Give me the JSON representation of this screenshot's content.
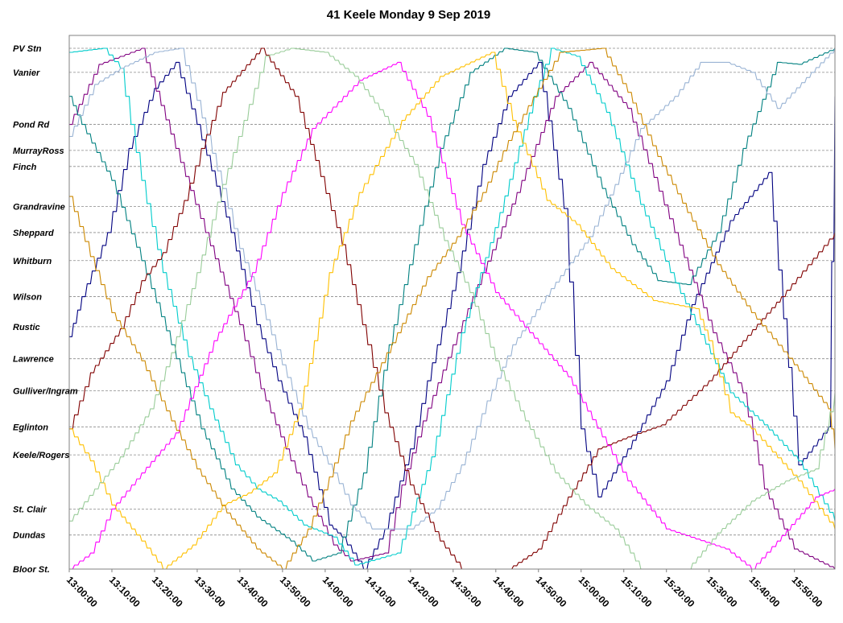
{
  "chart_data": {
    "type": "line",
    "title": "41 Keele Monday  9 Sep 2019",
    "xlabel": "",
    "ylabel": "",
    "x_range": [
      "13:00:00",
      "15:58:00"
    ],
    "x_ticks": [
      "13:00:00",
      "13:10:00",
      "13:20:00",
      "13:30:00",
      "13:40:00",
      "13:50:00",
      "14:00:00",
      "14:10:00",
      "14:20:00",
      "14:30:00",
      "14:40:00",
      "14:50:00",
      "15:00:00",
      "15:10:00",
      "15:20:00",
      "15:30:00",
      "15:40:00",
      "15:50:00"
    ],
    "stops": [
      {
        "name": "PV Stn",
        "pos": 0
      },
      {
        "name": "Vanier",
        "pos": 0.6
      },
      {
        "name": "Pond Rd",
        "pos": 1.9
      },
      {
        "name": "MurrayRoss",
        "pos": 2.55
      },
      {
        "name": "Finch",
        "pos": 2.95
      },
      {
        "name": "Grandravine",
        "pos": 3.95
      },
      {
        "name": "Sheppard",
        "pos": 4.6
      },
      {
        "name": "Whitburn",
        "pos": 5.3
      },
      {
        "name": "Wilson",
        "pos": 6.2
      },
      {
        "name": "Rustic",
        "pos": 6.95
      },
      {
        "name": "Lawrence",
        "pos": 7.75
      },
      {
        "name": "Gulliver/Ingram",
        "pos": 8.55
      },
      {
        "name": "Eglinton",
        "pos": 9.45
      },
      {
        "name": "Keele/Rogers",
        "pos": 10.15
      },
      {
        "name": "St. Clair",
        "pos": 11.5
      },
      {
        "name": "Dundas",
        "pos": 12.15
      },
      {
        "name": "Bloor St.",
        "pos": 13.0
      }
    ],
    "grid": true,
    "legend": "none",
    "series": [
      {
        "color": "#000080",
        "points": [
          [
            0,
            7.2
          ],
          [
            3,
            6.2
          ],
          [
            9,
            4.6
          ],
          [
            14,
            2.5
          ],
          [
            20,
            1.0
          ],
          [
            25,
            0.35
          ],
          [
            30,
            1.9
          ],
          [
            38,
            4.6
          ],
          [
            44,
            6.9
          ],
          [
            49,
            8.3
          ],
          [
            55,
            9.7
          ],
          [
            61,
            11.9
          ],
          [
            64,
            12.2
          ],
          [
            69,
            13.0
          ],
          [
            74,
            12.0
          ],
          [
            80,
            10.0
          ],
          [
            84,
            8.3
          ],
          [
            91,
            5.6
          ],
          [
            97,
            2.9
          ],
          [
            103,
            1.2
          ],
          [
            110,
            0.35
          ],
          [
            116,
            4.0
          ],
          [
            120,
            9.5
          ],
          [
            124,
            11.2
          ],
          [
            131,
            10.0
          ],
          [
            140,
            8.3
          ],
          [
            146,
            6.4
          ],
          [
            155,
            4.3
          ],
          [
            164,
            3.1
          ],
          [
            171,
            10.4
          ],
          [
            178,
            9.45
          ],
          [
            179.5,
            1.2
          ]
        ]
      },
      {
        "color": "#800080",
        "points": [
          [
            0,
            1.9
          ],
          [
            7,
            0.4
          ],
          [
            17,
            0
          ],
          [
            25,
            2.5
          ],
          [
            32,
            4.6
          ],
          [
            40,
            6.9
          ],
          [
            45,
            8.5
          ],
          [
            52,
            10.3
          ],
          [
            56,
            11.2
          ],
          [
            62,
            12.4
          ],
          [
            66,
            12.8
          ],
          [
            74,
            12.6
          ],
          [
            78,
            10.9
          ],
          [
            83,
            9.3
          ],
          [
            90,
            7.4
          ],
          [
            97,
            5.6
          ],
          [
            105,
            3.6
          ],
          [
            114,
            1.2
          ],
          [
            122,
            0.35
          ],
          [
            131,
            1.5
          ],
          [
            142,
            4.6
          ],
          [
            151,
            7.1
          ],
          [
            158,
            8.6
          ],
          [
            163,
            11.0
          ],
          [
            170,
            12.5
          ],
          [
            179.5,
            13.0
          ]
        ]
      },
      {
        "color": "#008080",
        "points": [
          [
            0,
            1.2
          ],
          [
            3,
            1.9
          ],
          [
            10,
            3.3
          ],
          [
            17,
            5.3
          ],
          [
            24,
            7.4
          ],
          [
            31,
            9.5
          ],
          [
            38,
            11.0
          ],
          [
            44,
            11.7
          ],
          [
            52,
            12.3
          ],
          [
            57,
            12.8
          ],
          [
            63,
            12.6
          ],
          [
            69,
            10.6
          ],
          [
            75,
            7.4
          ],
          [
            81,
            4.9
          ],
          [
            87,
            2.5
          ],
          [
            94,
            0.6
          ],
          [
            102,
            0.0
          ],
          [
            109,
            0.1
          ],
          [
            117,
            1.5
          ],
          [
            125,
            3.5
          ],
          [
            132,
            4.9
          ],
          [
            138,
            5.8
          ],
          [
            145,
            5.9
          ],
          [
            152,
            4.6
          ],
          [
            158,
            2.5
          ],
          [
            166,
            0.35
          ],
          [
            171,
            0.4
          ],
          [
            179.5,
            0.0
          ]
        ]
      },
      {
        "color": "#00cccc",
        "points": [
          [
            0,
            0.1
          ],
          [
            8,
            0.0
          ],
          [
            12,
            0.5
          ],
          [
            17,
            3.3
          ],
          [
            22,
            5.6
          ],
          [
            28,
            7.7
          ],
          [
            33,
            9.0
          ],
          [
            39,
            10.4
          ],
          [
            44,
            11.0
          ],
          [
            49,
            11.3
          ],
          [
            55,
            11.9
          ],
          [
            62,
            12.2
          ],
          [
            67,
            12.9
          ],
          [
            77,
            12.6
          ],
          [
            85,
            10.2
          ],
          [
            92,
            7.1
          ],
          [
            101,
            4.1
          ],
          [
            109,
            1.2
          ],
          [
            113,
            0.0
          ],
          [
            119,
            0.2
          ],
          [
            126,
            1.6
          ],
          [
            134,
            3.9
          ],
          [
            141,
            5.6
          ],
          [
            147,
            6.9
          ],
          [
            155,
            8.6
          ],
          [
            163,
            9.4
          ],
          [
            171,
            10.3
          ],
          [
            179.5,
            11.8
          ]
        ]
      },
      {
        "color": "#99b3d4",
        "points": [
          [
            0,
            2.2
          ],
          [
            6,
            0.9
          ],
          [
            12,
            0.5
          ],
          [
            20,
            0.1
          ],
          [
            26,
            0.0
          ],
          [
            30,
            1.3
          ],
          [
            36,
            3.5
          ],
          [
            40,
            5.0
          ],
          [
            45,
            6.4
          ],
          [
            50,
            7.9
          ],
          [
            56,
            9.5
          ],
          [
            62,
            10.6
          ],
          [
            66,
            11.4
          ],
          [
            71,
            12.0
          ],
          [
            80,
            12.0
          ],
          [
            86,
            11.5
          ],
          [
            92,
            10.4
          ],
          [
            98,
            8.8
          ],
          [
            104,
            7.4
          ],
          [
            113,
            6.0
          ],
          [
            122,
            4.7
          ],
          [
            128,
            3.4
          ],
          [
            134,
            2.0
          ],
          [
            142,
            1.2
          ],
          [
            148,
            0.35
          ],
          [
            154,
            0.35
          ],
          [
            160,
            0.6
          ],
          [
            166,
            1.5
          ],
          [
            174,
            0.6
          ],
          [
            179.5,
            0.0
          ]
        ]
      },
      {
        "color": "#800000",
        "points": [
          [
            0,
            9.5
          ],
          [
            5,
            8.1
          ],
          [
            12,
            7.0
          ],
          [
            17,
            5.8
          ],
          [
            22,
            5.1
          ],
          [
            27,
            3.8
          ],
          [
            31,
            2.5
          ],
          [
            36,
            1.1
          ],
          [
            45,
            0.0
          ],
          [
            53,
            1.2
          ],
          [
            59,
            3.2
          ],
          [
            64,
            4.9
          ],
          [
            70,
            7.4
          ],
          [
            74,
            9.1
          ],
          [
            80,
            10.9
          ],
          [
            87,
            12.3
          ],
          [
            92,
            13.0
          ],
          [
            103,
            13.0
          ],
          [
            110,
            12.5
          ],
          [
            117,
            11.2
          ],
          [
            124,
            10.0
          ],
          [
            131,
            9.7
          ],
          [
            139,
            9.4
          ],
          [
            150,
            8.3
          ],
          [
            158,
            7.3
          ],
          [
            167,
            6.2
          ],
          [
            179.5,
            4.6
          ]
        ]
      },
      {
        "color": "#ff00ff",
        "points": [
          [
            0,
            13.0
          ],
          [
            5,
            12.6
          ],
          [
            10,
            11.5
          ],
          [
            17,
            10.6
          ],
          [
            25,
            9.6
          ],
          [
            34,
            7.3
          ],
          [
            43,
            5.6
          ],
          [
            50,
            3.6
          ],
          [
            57,
            2.0
          ],
          [
            68,
            0.8
          ],
          [
            77,
            0.35
          ],
          [
            84,
            1.7
          ],
          [
            92,
            4.4
          ],
          [
            100,
            6.1
          ],
          [
            108,
            7.1
          ],
          [
            117,
            8.2
          ],
          [
            125,
            9.7
          ],
          [
            131,
            10.8
          ],
          [
            140,
            12.0
          ],
          [
            154,
            12.5
          ],
          [
            160,
            13.0
          ],
          [
            166,
            12.3
          ],
          [
            175,
            11.2
          ],
          [
            179.5,
            11.0
          ]
        ]
      },
      {
        "color": "#ffc000",
        "points": [
          [
            0,
            9.5
          ],
          [
            5,
            10.3
          ],
          [
            10,
            11.4
          ],
          [
            17,
            12.3
          ],
          [
            22,
            13.0
          ],
          [
            29,
            12.4
          ],
          [
            36,
            11.4
          ],
          [
            42,
            11.1
          ],
          [
            48,
            10.6
          ],
          [
            54,
            9.0
          ],
          [
            61,
            5.6
          ],
          [
            68,
            3.6
          ],
          [
            78,
            1.8
          ],
          [
            87,
            0.7
          ],
          [
            99,
            0.1
          ],
          [
            104,
            1.8
          ],
          [
            112,
            3.8
          ],
          [
            119,
            4.4
          ],
          [
            127,
            5.5
          ],
          [
            137,
            6.3
          ],
          [
            147,
            6.5
          ],
          [
            150,
            7.3
          ],
          [
            155,
            9.1
          ],
          [
            160,
            9.5
          ],
          [
            171,
            10.8
          ],
          [
            179.5,
            12.0
          ]
        ]
      },
      {
        "color": "#cc8800",
        "points": [
          [
            0,
            3.7
          ],
          [
            5,
            5.2
          ],
          [
            10,
            6.6
          ],
          [
            17,
            7.8
          ],
          [
            24,
            9.3
          ],
          [
            30,
            10.5
          ],
          [
            37,
            11.6
          ],
          [
            44,
            12.5
          ],
          [
            50,
            13.0
          ],
          [
            56,
            12.0
          ],
          [
            61,
            10.7
          ],
          [
            66,
            9.3
          ],
          [
            72,
            8.1
          ],
          [
            77,
            7.1
          ],
          [
            84,
            5.7
          ],
          [
            91,
            4.7
          ],
          [
            97,
            3.6
          ],
          [
            103,
            2.3
          ],
          [
            110,
            1.0
          ],
          [
            115,
            0.1
          ],
          [
            125,
            0.0
          ],
          [
            131,
            1.1
          ],
          [
            138,
            2.7
          ],
          [
            145,
            4.1
          ],
          [
            152,
            5.4
          ],
          [
            160,
            6.6
          ],
          [
            170,
            7.9
          ],
          [
            178,
            9.0
          ],
          [
            179.5,
            10.0
          ]
        ]
      },
      {
        "color": "#99cc99",
        "points": [
          [
            0,
            11.8
          ],
          [
            6,
            11.0
          ],
          [
            12,
            10.2
          ],
          [
            19,
            9.0
          ],
          [
            24,
            7.6
          ],
          [
            30,
            5.6
          ],
          [
            36,
            3.4
          ],
          [
            41,
            1.8
          ],
          [
            46,
            0.2
          ],
          [
            52,
            0.0
          ],
          [
            60,
            0.1
          ],
          [
            67,
            0.7
          ],
          [
            74,
            1.7
          ],
          [
            81,
            2.9
          ],
          [
            88,
            4.8
          ],
          [
            94,
            6.1
          ],
          [
            100,
            7.8
          ],
          [
            107,
            9.3
          ],
          [
            114,
            10.6
          ],
          [
            121,
            11.4
          ],
          [
            128,
            12.0
          ],
          [
            134,
            13.0
          ],
          [
            145,
            13.0
          ],
          [
            152,
            12.1
          ],
          [
            160,
            11.3
          ],
          [
            168,
            10.8
          ],
          [
            175,
            10.5
          ],
          [
            179.5,
            8.6
          ]
        ]
      }
    ]
  }
}
